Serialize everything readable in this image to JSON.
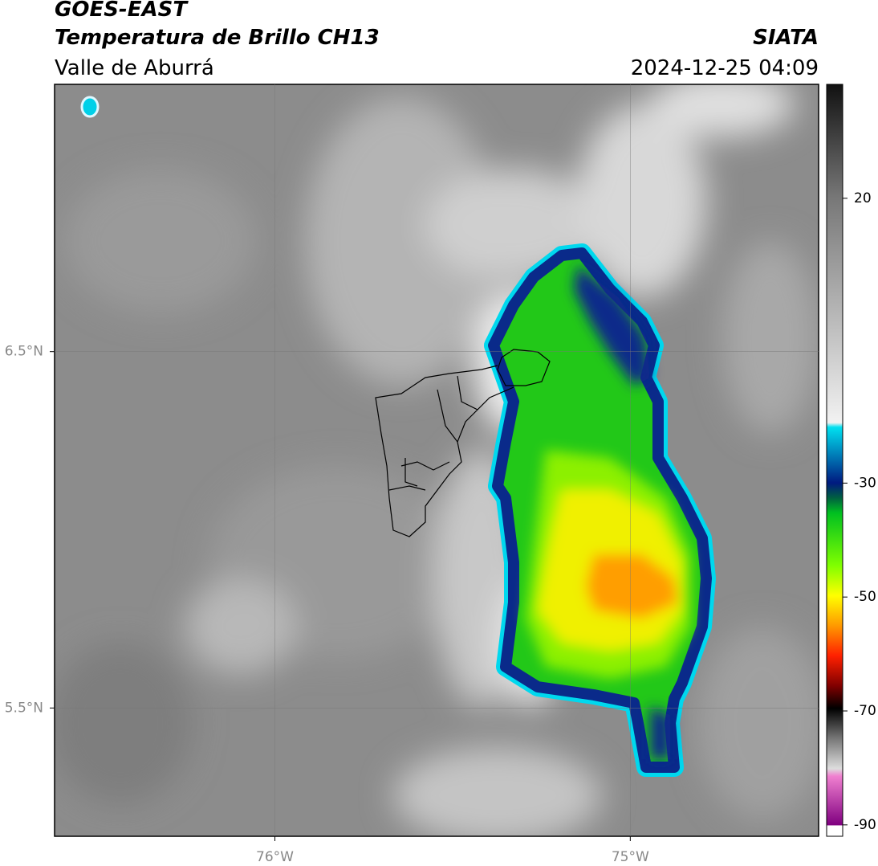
{
  "header": {
    "title": "GOES-EAST",
    "subtitle": "Temperatura de Brillo CH13",
    "region": "Valle de Aburrá",
    "source": "SIATA",
    "timestamp": "2024-12-25 04:09"
  },
  "map": {
    "xlim": [
      -76.62,
      -74.47
    ],
    "ylim": [
      5.14,
      7.25
    ],
    "xticks": [
      {
        "value": -76,
        "label": "76°W"
      },
      {
        "value": -75,
        "label": "75°W"
      }
    ],
    "yticks": [
      {
        "value": 6.5,
        "label": "6.5°N"
      },
      {
        "value": 5.5,
        "label": "5.5°N"
      }
    ],
    "grid": true
  },
  "colorbar": {
    "lim": [
      -92,
      40
    ],
    "ticks": [
      20,
      -30,
      -50,
      -70,
      -90
    ]
  }
}
